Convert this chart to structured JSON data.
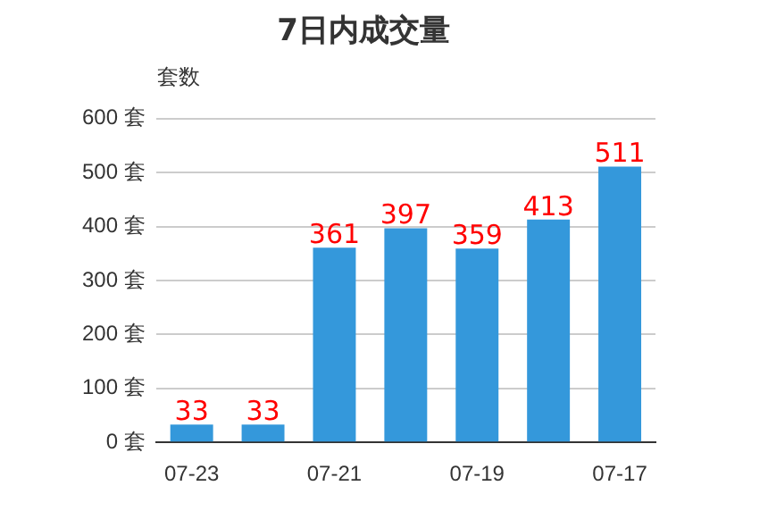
{
  "chart_data": {
    "type": "bar",
    "title": "7日内成交量",
    "ylabel": "套数",
    "categories": [
      "07-23",
      null,
      "07-21",
      null,
      "07-19",
      null,
      "07-17"
    ],
    "values": [
      33,
      33,
      361,
      397,
      359,
      413,
      511
    ],
    "color": "#3498db",
    "ylim": [
      0,
      600
    ],
    "yticks": [
      {
        "value": 0,
        "label": "0 套"
      },
      {
        "value": 100,
        "label": "100 套"
      },
      {
        "value": 200,
        "label": "200 套"
      },
      {
        "value": 300,
        "label": "300 套"
      },
      {
        "value": 400,
        "label": "400 套"
      },
      {
        "value": 500,
        "label": "500 套"
      },
      {
        "value": 600,
        "label": "600 套"
      }
    ],
    "grid": "y",
    "data_labels": true
  }
}
